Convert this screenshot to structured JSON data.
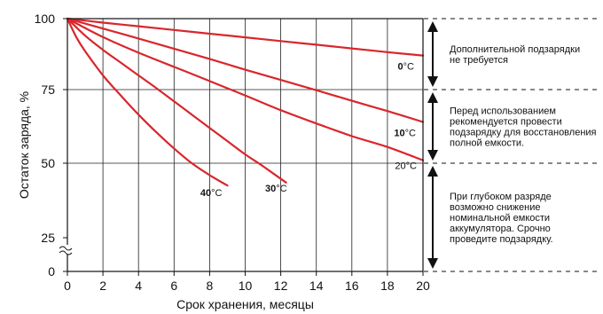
{
  "chart_data": {
    "type": "line",
    "xlabel": "Срок хранения, месяцы",
    "ylabel": "Остаток заряда, %",
    "xlim": [
      0,
      20
    ],
    "ylim": [
      0,
      100
    ],
    "x_ticks": [
      "0",
      "2",
      "4",
      "6",
      "8",
      "10",
      "12",
      "14",
      "16",
      "18",
      "20"
    ],
    "y_ticks": [
      {
        "value": 0,
        "label": "0"
      },
      {
        "value": 25,
        "label": "25"
      },
      {
        "value": 50,
        "label": "50"
      },
      {
        "value": 75,
        "label": "75"
      },
      {
        "value": 100,
        "label": "100"
      }
    ],
    "grid": true,
    "series_color": "#d9262c",
    "series": [
      {
        "name": "0",
        "unit": "°C",
        "bold": true,
        "x": [
          0,
          2,
          4,
          6,
          8,
          10,
          12,
          14,
          16,
          18,
          20
        ],
        "y": [
          100,
          98.6,
          97.3,
          96.0,
          94.7,
          93.4,
          92.1,
          90.8,
          89.5,
          88.2,
          87
        ]
      },
      {
        "name": "10",
        "unit": "°C",
        "bold": true,
        "x": [
          0,
          2,
          4,
          6,
          8,
          10,
          12,
          14,
          16,
          18,
          20
        ],
        "y": [
          100,
          96.5,
          93.0,
          89.4,
          85.8,
          82.0,
          78.4,
          74.8,
          71.2,
          67.7,
          64
        ]
      },
      {
        "name": "20",
        "unit": "°C",
        "bold": false,
        "x": [
          0,
          2,
          4,
          6,
          8,
          10,
          12,
          14,
          16,
          18,
          20
        ],
        "y": [
          100,
          93.5,
          88.0,
          83.0,
          78.0,
          73.0,
          68.0,
          63.5,
          59.2,
          55.5,
          51
        ]
      },
      {
        "name": "30",
        "unit": "°C",
        "bold": true,
        "x": [
          0,
          1,
          2,
          3,
          4,
          5,
          6,
          7,
          8,
          9,
          10,
          11,
          12.3
        ],
        "y": [
          100,
          94.0,
          89.0,
          84.5,
          80.0,
          75.5,
          71.0,
          66.5,
          62.0,
          57.5,
          53.0,
          49.0,
          43.5
        ]
      },
      {
        "name": "40",
        "unit": "°C",
        "bold": true,
        "x": [
          0,
          0.5,
          1,
          2,
          3,
          4,
          5,
          6,
          7,
          8,
          9
        ],
        "y": [
          100,
          93.5,
          88.5,
          80.0,
          73.0,
          66.5,
          60.5,
          55.0,
          50.0,
          46.0,
          42.5
        ]
      }
    ],
    "zones": [
      {
        "from": 75,
        "to": 100,
        "text": [
          "Дополнительной подзарядки",
          "не требуется"
        ]
      },
      {
        "from": 50,
        "to": 75,
        "text": [
          "Перед использованием",
          "рекомендуется провести",
          "подзарядку для восстановления",
          "полной емкости."
        ]
      },
      {
        "from": 0,
        "to": 50,
        "text": [
          "При глубоком разряде",
          "возможно снижение",
          "номинальной емкости",
          "аккумулятора. Срочно",
          "проведите подзарядку."
        ]
      }
    ]
  }
}
